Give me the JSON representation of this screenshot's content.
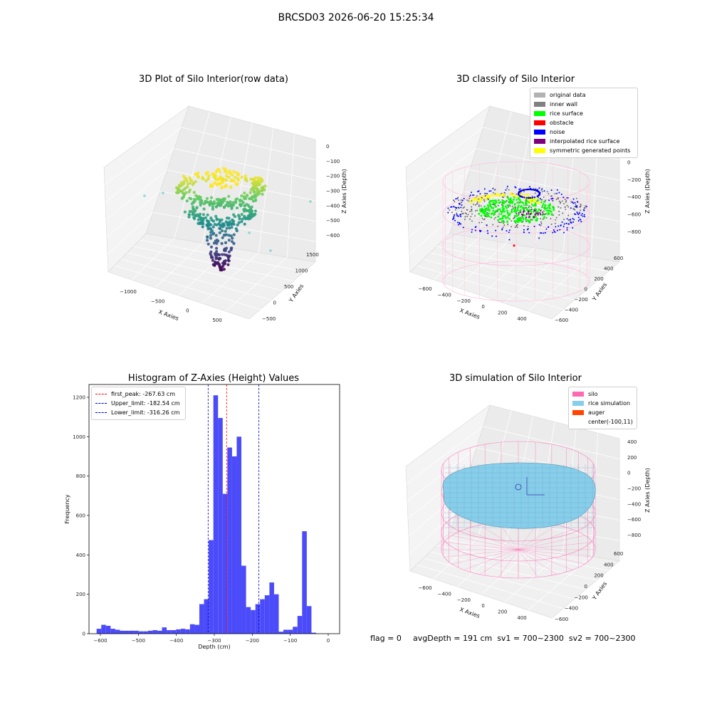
{
  "figure_title": "BRCSD03 2026-06-20 15:25:34",
  "chart_data": [
    {
      "type": "scatter3d",
      "title": "3D Plot of Silo Interior(row data)",
      "xlabel": "X Axies",
      "ylabel": "Y Axies",
      "zlabel": "Z Axies (Depth)",
      "x_ticks": [
        "−1000",
        "−500",
        "0",
        "500"
      ],
      "y_ticks": [
        "−500",
        "0",
        "500",
        "1000",
        "1500"
      ],
      "z_ticks": [
        "0",
        "−100",
        "−200",
        "−300",
        "−400",
        "−500",
        "−600"
      ],
      "xlim": [
        -1300,
        800
      ],
      "ylim": [
        -700,
        1700
      ],
      "zlim": [
        -650,
        20
      ],
      "colormap": "viridis"
    },
    {
      "type": "scatter3d",
      "title": "3D classify of Silo Interior",
      "xlabel": "X Axies",
      "ylabel": "Y Axies",
      "zlabel": "Z Axies (Depth)",
      "x_ticks": [
        "−600",
        "−400",
        "−200",
        "0",
        "200",
        "400"
      ],
      "y_ticks": [
        "−600",
        "−400",
        "−200",
        "0",
        "200",
        "400",
        "600"
      ],
      "z_ticks": [
        "200",
        "0",
        "−200",
        "−400",
        "−600",
        "−800"
      ],
      "legend": [
        {
          "label": "original data",
          "color": "#b2b2b2"
        },
        {
          "label": "inner wall",
          "color": "#808080"
        },
        {
          "label": "rice surface",
          "color": "#00ff00"
        },
        {
          "label": "obstacle",
          "color": "#ff0000"
        },
        {
          "label": "noise",
          "color": "#0000ff"
        },
        {
          "label": "interpolated rice surface",
          "color": "#800080"
        },
        {
          "label": "symmetric generated points",
          "color": "#ffff00"
        }
      ],
      "legend_position": "upper right"
    },
    {
      "type": "bar",
      "title": "Histogram of Z-Axies (Height) Values",
      "xlabel": "Depth (cm)",
      "ylabel": "Frequency",
      "bar_color": "#4b4bfa",
      "xlim": [
        -630,
        30
      ],
      "ylim": [
        0,
        1265
      ],
      "x_ticks": [
        "−600",
        "−500",
        "−400",
        "−300",
        "−200",
        "−100",
        "0"
      ],
      "x_tick_values": [
        -600,
        -500,
        -400,
        -300,
        -200,
        -100,
        0
      ],
      "y_ticks": [
        "0",
        "200",
        "400",
        "600",
        "800",
        "1000",
        "1200"
      ],
      "y_tick_values": [
        0,
        200,
        400,
        600,
        800,
        1000,
        1200
      ],
      "bin_start": -610,
      "bin_width": 12.3,
      "values": [
        25,
        45,
        40,
        25,
        20,
        15,
        15,
        15,
        15,
        12,
        12,
        15,
        18,
        15,
        32,
        18,
        18,
        22,
        25,
        22,
        48,
        45,
        150,
        175,
        475,
        1210,
        1095,
        710,
        945,
        900,
        1000,
        345,
        135,
        120,
        150,
        175,
        195,
        260,
        200,
        10,
        20,
        20,
        35,
        90,
        520,
        140,
        5
      ],
      "vlines": [
        {
          "label": "first_peak: -267.63 cm",
          "x": -267.63,
          "color": "#ff0000"
        },
        {
          "label": "Upper_limit: -182.54 cm",
          "x": -182.54,
          "color": "#0000cc"
        },
        {
          "label": "Lower_limit: -316.26 cm",
          "x": -316.26,
          "color": "#0000cc"
        }
      ],
      "legend_position": "upper left"
    },
    {
      "type": "surface3d",
      "title": "3D simulation of Silo Interior",
      "xlabel": "X Axies",
      "ylabel": "Y Axies",
      "zlabel": "Z Axies (Depth)",
      "x_ticks": [
        "−600",
        "−400",
        "−200",
        "0",
        "200",
        "400"
      ],
      "y_ticks": [
        "−600",
        "−400",
        "−200",
        "0",
        "200",
        "400",
        "600"
      ],
      "z_ticks": [
        "400",
        "200",
        "0",
        "−200",
        "−400",
        "−600",
        "−800"
      ],
      "legend": [
        {
          "label": "silo",
          "color": "#ff69b4"
        },
        {
          "label": "rice simulation",
          "color": "#87ceeb"
        },
        {
          "label": "auger",
          "color": "#ff4500"
        },
        {
          "label": "center(-100,11)",
          "color": ""
        }
      ],
      "legend_position": "upper right"
    }
  ],
  "footer": {
    "flag": "flag = 0",
    "avg": "avgDepth = 191 cm  sv1 = 700~2300  sv2 = 700~2300"
  }
}
